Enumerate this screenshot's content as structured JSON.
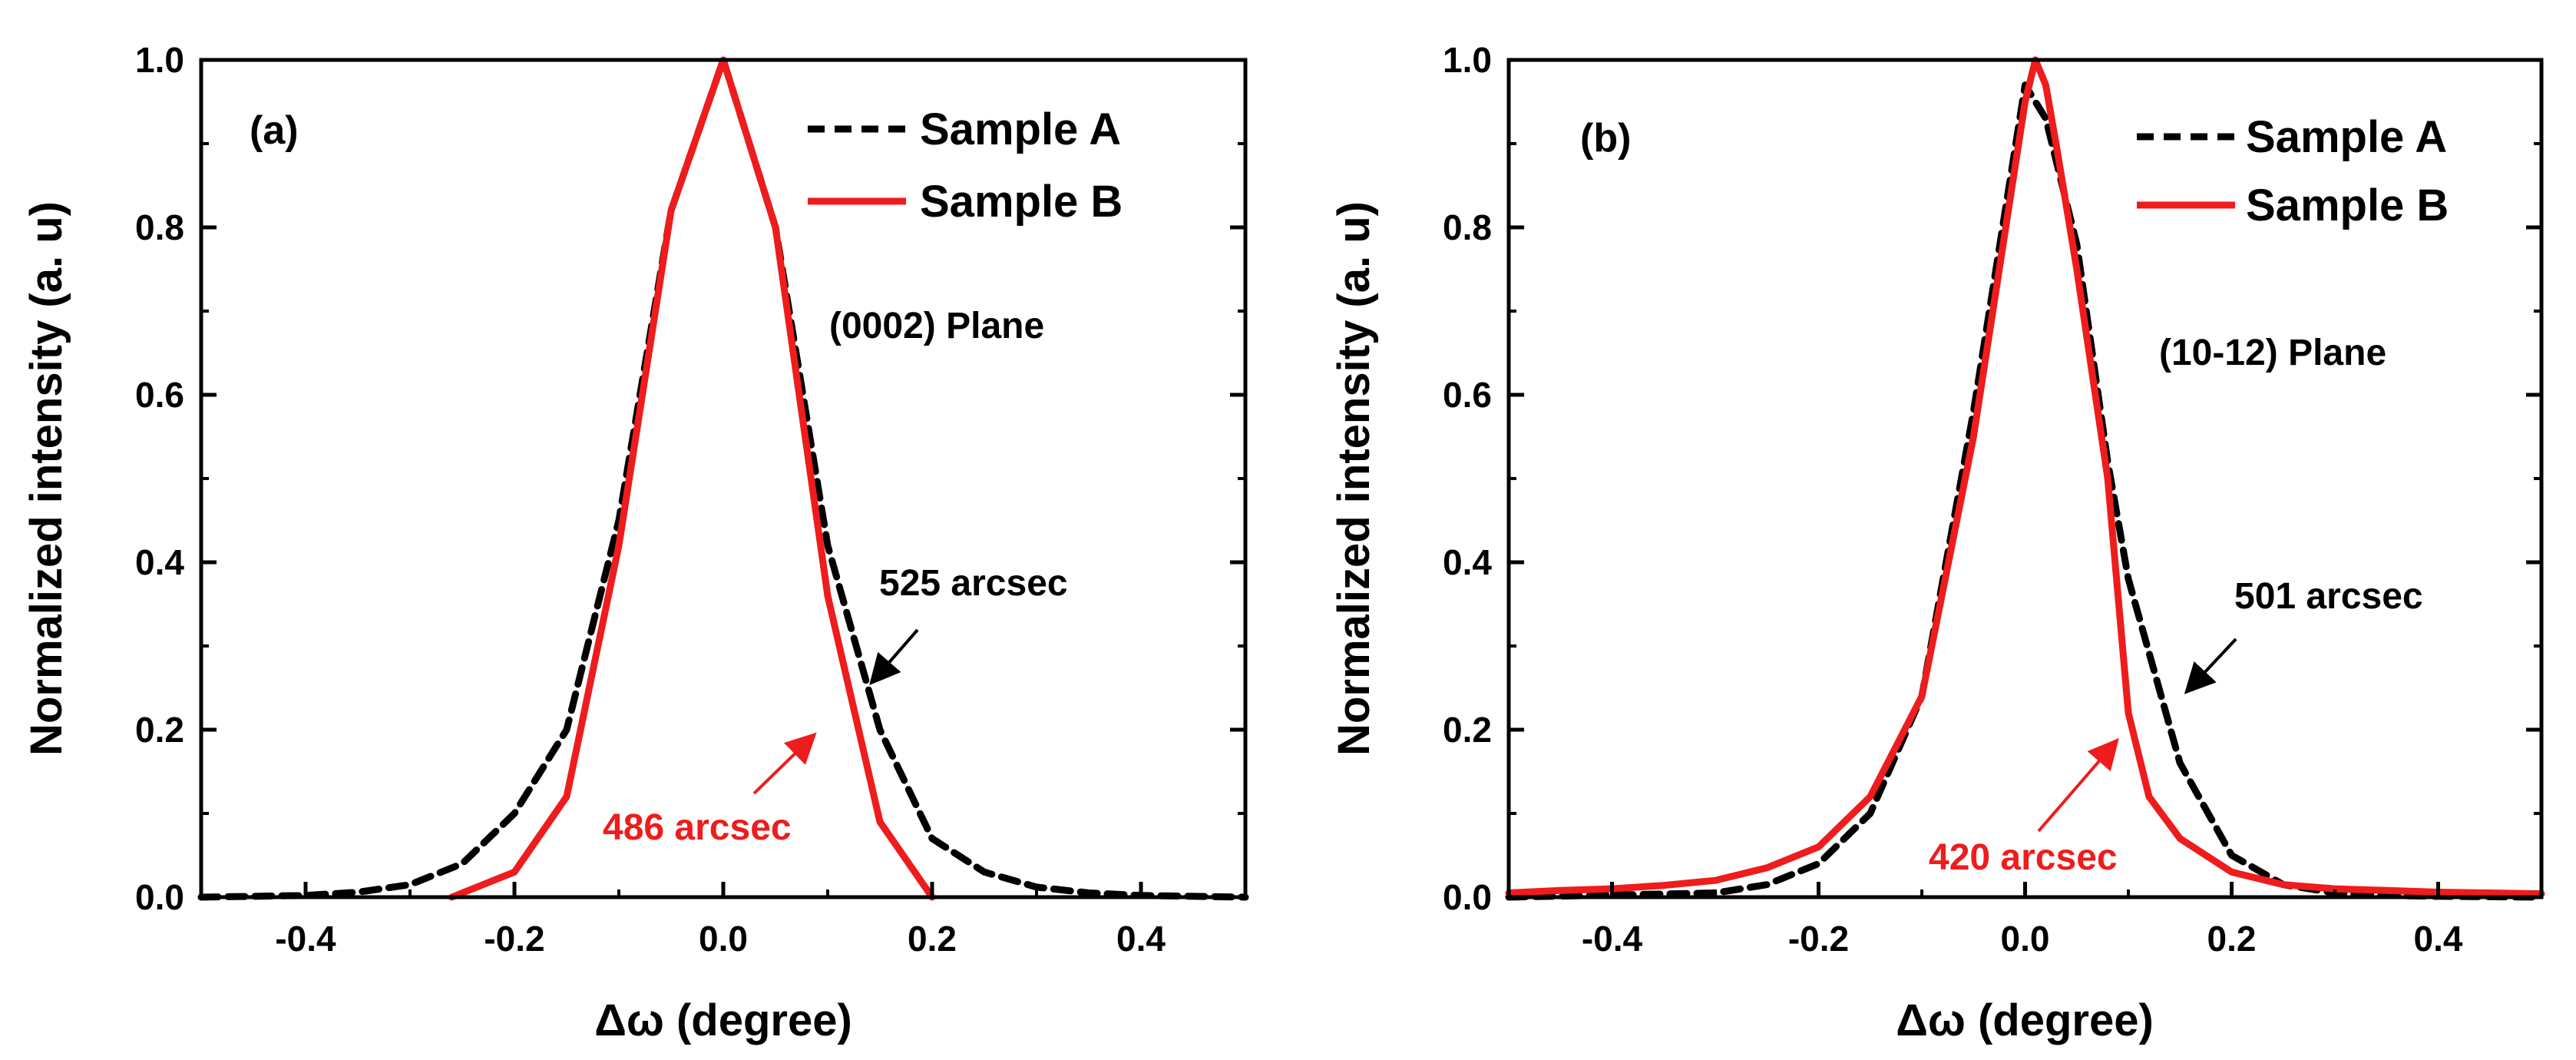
{
  "chart_data": [
    {
      "type": "line",
      "panel_label": "(a)",
      "xlabel": "Δω (degree)",
      "ylabel": "Normalized intensity (a. u)",
      "xlim": [
        -0.5,
        0.5
      ],
      "ylim": [
        0.0,
        1.0
      ],
      "xticks": [
        -0.4,
        -0.2,
        0.0,
        0.2,
        0.4
      ],
      "xtick_labels": [
        "-0.4",
        "-0.2",
        "0.0",
        "0.2",
        "0.4"
      ],
      "yticks": [
        0.0,
        0.2,
        0.4,
        0.6,
        0.8,
        1.0
      ],
      "ytick_labels": [
        "0.0",
        "0.2",
        "0.4",
        "0.6",
        "0.8",
        "1.0"
      ],
      "legend": [
        "Sample A",
        "Sample B"
      ],
      "legend_position": "top-right",
      "plane_label": "(0002) Plane",
      "series": [
        {
          "name": "Sample A",
          "color": "#000000",
          "style": "dashed",
          "x": [
            -0.5,
            -0.4,
            -0.35,
            -0.3,
            -0.25,
            -0.2,
            -0.15,
            -0.1,
            -0.05,
            0.0,
            0.05,
            0.1,
            0.15,
            0.2,
            0.25,
            0.3,
            0.35,
            0.4,
            0.5
          ],
          "y": [
            0.0,
            0.002,
            0.006,
            0.015,
            0.04,
            0.1,
            0.2,
            0.45,
            0.82,
            1.0,
            0.8,
            0.42,
            0.2,
            0.07,
            0.03,
            0.012,
            0.005,
            0.002,
            0.0
          ]
        },
        {
          "name": "Sample B",
          "color": "#ee1c1c",
          "style": "solid",
          "x": [
            -0.26,
            -0.2,
            -0.15,
            -0.1,
            -0.05,
            0.0,
            0.05,
            0.1,
            0.15,
            0.2
          ],
          "y": [
            0.0,
            0.03,
            0.12,
            0.42,
            0.82,
            1.0,
            0.8,
            0.36,
            0.09,
            0.0
          ]
        }
      ],
      "annotations": [
        {
          "text": "525 arcsec",
          "color": "#000000"
        },
        {
          "text": "486 arcsec",
          "color": "#ee1c1c"
        }
      ]
    },
    {
      "type": "line",
      "panel_label": "(b)",
      "xlabel": "Δω (degree)",
      "ylabel": "Normalized intensity (a. u)",
      "xlim": [
        -0.5,
        0.5
      ],
      "ylim": [
        0.0,
        1.0
      ],
      "xticks": [
        -0.4,
        -0.2,
        0.0,
        0.2,
        0.4
      ],
      "xtick_labels": [
        "-0.4",
        "-0.2",
        "0.0",
        "0.2",
        "0.4"
      ],
      "yticks": [
        0.0,
        0.2,
        0.4,
        0.6,
        0.8,
        1.0
      ],
      "ytick_labels": [
        "0.0",
        "0.2",
        "0.4",
        "0.6",
        "0.8",
        "1.0"
      ],
      "legend": [
        "Sample A",
        "Sample B"
      ],
      "legend_position": "top-right",
      "plane_label": "(10-12) Plane",
      "series": [
        {
          "name": "Sample A",
          "color": "#000000",
          "style": "dashed",
          "x": [
            -0.5,
            -0.3,
            -0.25,
            -0.2,
            -0.15,
            -0.1,
            -0.05,
            0.0,
            0.02,
            0.05,
            0.08,
            0.1,
            0.15,
            0.2,
            0.25,
            0.3,
            0.35,
            0.4,
            0.5
          ],
          "y": [
            0.0,
            0.005,
            0.015,
            0.04,
            0.1,
            0.24,
            0.58,
            0.97,
            0.93,
            0.78,
            0.52,
            0.38,
            0.16,
            0.05,
            0.015,
            0.005,
            0.002,
            0.001,
            0.0
          ]
        },
        {
          "name": "Sample B",
          "color": "#ee1c1c",
          "style": "solid",
          "x": [
            -0.5,
            -0.45,
            -0.4,
            -0.35,
            -0.3,
            -0.25,
            -0.2,
            -0.15,
            -0.1,
            -0.05,
            0.0,
            0.01,
            0.02,
            0.03,
            0.05,
            0.08,
            0.1,
            0.12,
            0.15,
            0.2,
            0.25,
            0.3,
            0.35,
            0.4,
            0.45,
            0.5
          ],
          "y": [
            0.005,
            0.008,
            0.01,
            0.014,
            0.02,
            0.035,
            0.06,
            0.12,
            0.24,
            0.55,
            0.95,
            1.0,
            0.97,
            0.9,
            0.75,
            0.5,
            0.22,
            0.12,
            0.07,
            0.03,
            0.015,
            0.01,
            0.008,
            0.006,
            0.005,
            0.004
          ]
        }
      ],
      "annotations": [
        {
          "text": "501 arcsec",
          "color": "#000000"
        },
        {
          "text": "420 arcsec",
          "color": "#ee1c1c"
        }
      ]
    }
  ]
}
